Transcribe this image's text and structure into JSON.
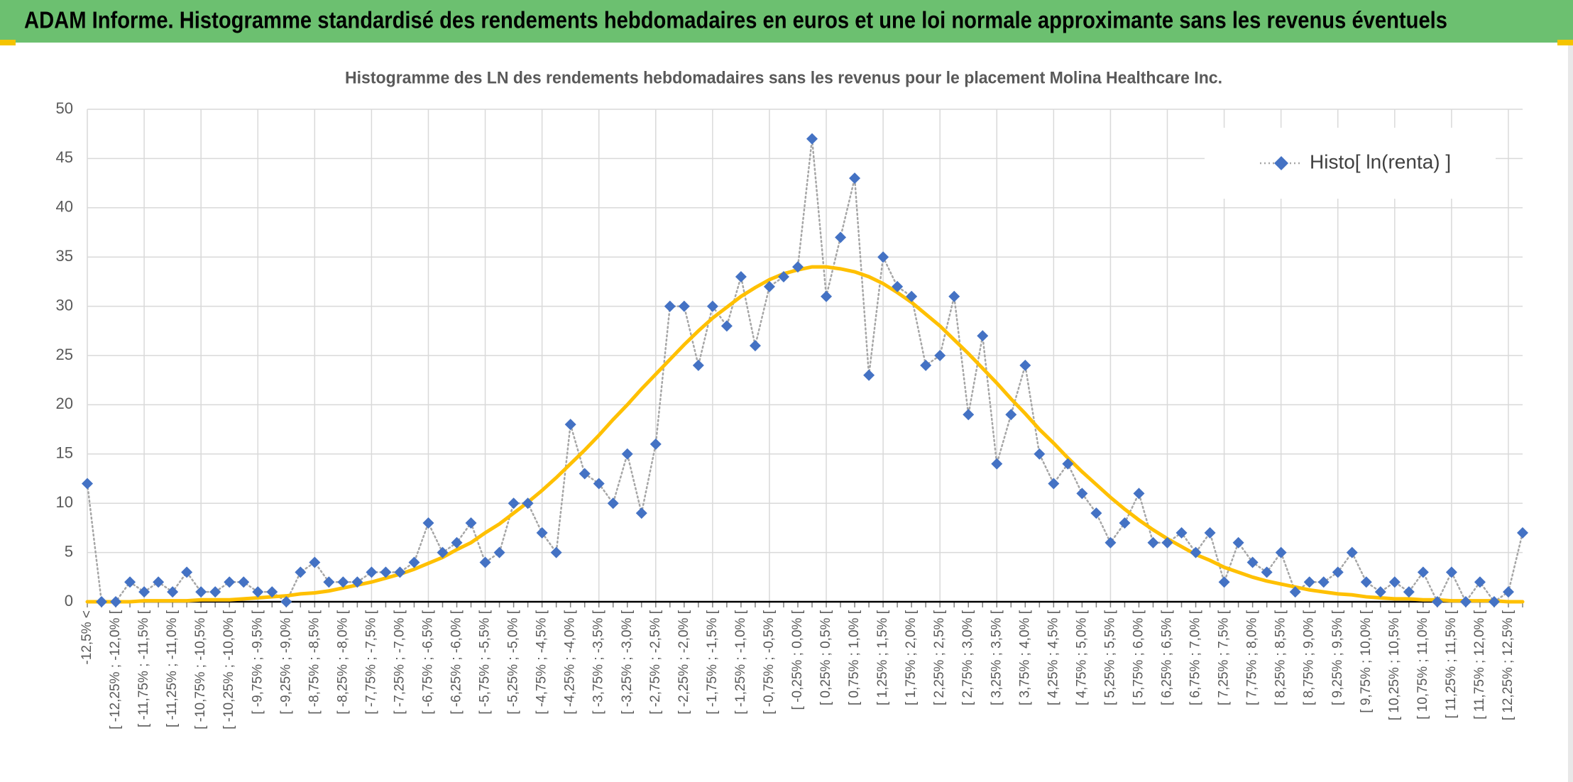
{
  "header": {
    "title": "ADAM Informe. Histogramme standardisé des rendements hebdomadaires en euros et une loi normale approximante sans les revenus éventuels"
  },
  "chart_data": {
    "type": "line",
    "title": "Histogramme des LN des rendements hebdomadaires sans les revenus pour le placement Molina Healthcare Inc.",
    "categories": [
      "-12,5% <",
      null,
      "[ -12,25% ; -12,0% [",
      null,
      "[ -11,75% ; -11,5% [",
      null,
      "[ -11,25% ; -11,0% [",
      null,
      "[ -10,75% ; -10,5% [",
      null,
      "[ -10,25% ; -10,0% [",
      null,
      "[ -9,75% ; -9,5% [",
      null,
      "[ -9,25% ; -9,0% [",
      null,
      "[ -8,75% ; -8,5% [",
      null,
      "[ -8,25% ; -8,0% [",
      null,
      "[ -7,75% ; -7,5% [",
      null,
      "[ -7,25% ; -7,0% [",
      null,
      "[ -6,75% ; -6,5% [",
      null,
      "[ -6,25% ; -6,0% [",
      null,
      "[ -5,75% ; -5,5% [",
      null,
      "[ -5,25% ; -5,0% [",
      null,
      "[ -4,75% ; -4,5% [",
      null,
      "[ -4,25% ; -4,0% [",
      null,
      "[ -3,75% ; -3,5% [",
      null,
      "[ -3,25% ; -3,0% [",
      null,
      "[ -2,75% ; -2,5% [",
      null,
      "[ -2,25% ; -2,0% [",
      null,
      "[ -1,75% ; -1,5% [",
      null,
      "[ -1,25% ; -1,0% [",
      null,
      "[ -0,75% ; -0,5% [",
      null,
      "[ -0,25% ; 0,0% [",
      null,
      "[ 0,25% ; 0,5% [",
      null,
      "[ 0,75% ; 1,0% [",
      null,
      "[ 1,25% ; 1,5% [",
      null,
      "[ 1,75% ; 2,0% [",
      null,
      "[ 2,25% ; 2,5% [",
      null,
      "[ 2,75% ; 3,0% [",
      null,
      "[ 3,25% ; 3,5% [",
      null,
      "[ 3,75% ; 4,0% [",
      null,
      "[ 4,25% ; 4,5% [",
      null,
      "[ 4,75% ; 5,0% [",
      null,
      "[ 5,25% ; 5,5% [",
      null,
      "[ 5,75% ; 6,0% [",
      null,
      "[ 6,25% ; 6,5% [",
      null,
      "[ 6,75% ; 7,0% [",
      null,
      "[ 7,25% ; 7,5% [",
      null,
      "[ 7,75% ; 8,0% [",
      null,
      "[ 8,25% ; 8,5% [",
      null,
      "[ 8,75% ; 9,0% [",
      null,
      "[ 9,25% ; 9,5% [",
      null,
      "[ 9,75% ; 10,0% [",
      null,
      "[ 10,25% ; 10,5% [",
      null,
      "[ 10,75% ; 11,0% [",
      null,
      "[ 11,25% ; 11,5% [",
      null,
      "[ 11,75% ; 12,0% [",
      null,
      "[ 12,25% ; 12,5% [",
      null
    ],
    "series": [
      {
        "name": "Histo[ ln(renta) ]",
        "color": "#4472c4",
        "line_color": "#a6a6a6",
        "values": [
          12,
          0,
          0,
          2,
          1,
          2,
          1,
          3,
          1,
          1,
          2,
          2,
          1,
          1,
          0,
          3,
          4,
          2,
          2,
          2,
          3,
          3,
          3,
          4,
          8,
          5,
          6,
          8,
          4,
          5,
          10,
          10,
          7,
          5,
          18,
          13,
          12,
          10,
          15,
          9,
          16,
          30,
          30,
          24,
          30,
          28,
          33,
          26,
          32,
          33,
          34,
          47,
          31,
          37,
          43,
          23,
          35,
          32,
          31,
          24,
          25,
          31,
          19,
          27,
          14,
          19,
          24,
          15,
          12,
          14,
          11,
          9,
          6,
          8,
          11,
          6,
          6,
          7,
          5,
          7,
          2,
          6,
          4,
          3,
          5,
          1,
          2,
          2,
          3,
          5,
          2,
          1,
          2,
          1,
          3,
          0,
          3,
          0,
          2,
          0,
          1,
          7
        ]
      },
      {
        "color": "#ffc000",
        "values": [
          0.0,
          0.0,
          0.0,
          0.0,
          0.1,
          0.1,
          0.1,
          0.1,
          0.2,
          0.2,
          0.2,
          0.3,
          0.4,
          0.5,
          0.6,
          0.8,
          0.9,
          1.1,
          1.4,
          1.7,
          2.0,
          2.4,
          2.8,
          3.3,
          3.9,
          4.5,
          5.3,
          6.0,
          7.0,
          7.9,
          9.0,
          10.1,
          11.3,
          12.6,
          14.0,
          15.4,
          16.9,
          18.5,
          20.0,
          21.6,
          23.1,
          24.6,
          26.1,
          27.5,
          28.8,
          29.9,
          31.0,
          31.9,
          32.7,
          33.3,
          33.7,
          34.0,
          34.0,
          33.8,
          33.5,
          33.0,
          32.3,
          31.4,
          30.4,
          29.2,
          28.0,
          26.6,
          25.2,
          23.7,
          22.2,
          20.6,
          19.1,
          17.5,
          16.1,
          14.6,
          13.2,
          11.9,
          10.6,
          9.4,
          8.3,
          7.3,
          6.4,
          5.6,
          4.8,
          4.2,
          3.5,
          3.0,
          2.5,
          2.1,
          1.8,
          1.5,
          1.2,
          1.0,
          0.8,
          0.7,
          0.5,
          0.4,
          0.3,
          0.3,
          0.2,
          0.2,
          0.1,
          0.1,
          0.1,
          0.1,
          0.0,
          0.0
        ]
      }
    ],
    "ylim": [
      0,
      50
    ],
    "yticks": [
      0,
      5,
      10,
      15,
      20,
      25,
      30,
      35,
      40,
      45,
      50
    ],
    "grid": true,
    "legend": "top-right"
  }
}
